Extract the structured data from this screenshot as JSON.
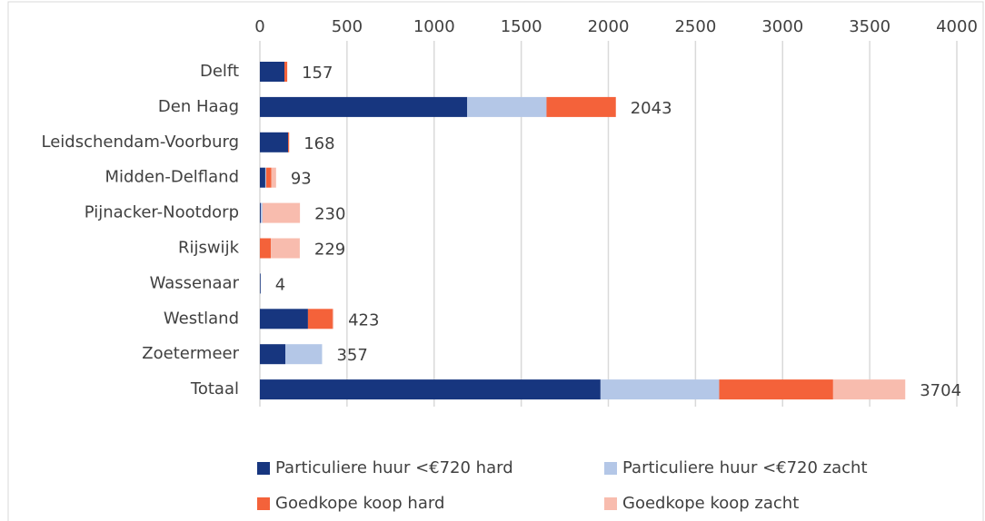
{
  "chart_data": {
    "type": "stacked_barh",
    "categories": [
      "Delft",
      "Den Haag",
      "Leidschendam-Voorburg",
      "Midden-Delfland",
      "Pijnacker-Nootdorp",
      "Rijswijk",
      "Wassenaar",
      "Westland",
      "Zoetermeer",
      "Totaal"
    ],
    "series": [
      {
        "name": "Particuliere huur <€720 hard",
        "color": "#17367f",
        "values": [
          141,
          1190,
          162,
          31,
          5,
          0,
          4,
          276,
          146,
          1955
        ]
      },
      {
        "name": "Particuliere huur <€720 zacht",
        "color": "#b4c7e7",
        "values": [
          0,
          455,
          0,
          5,
          10,
          0,
          0,
          0,
          211,
          681
        ]
      },
      {
        "name": "Goedkope koop hard",
        "color": "#f4623a",
        "values": [
          16,
          398,
          6,
          30,
          0,
          63,
          0,
          141,
          0,
          654
        ]
      },
      {
        "name": "Goedkope koop zacht",
        "color": "#f8bcae",
        "values": [
          0,
          0,
          0,
          27,
          215,
          166,
          0,
          6,
          0,
          414
        ]
      }
    ],
    "totals": [
      157,
      2043,
      168,
      93,
      230,
      229,
      4,
      423,
      357,
      3704
    ],
    "xlim": [
      0,
      4000
    ],
    "xticks": [
      0,
      500,
      1000,
      1500,
      2000,
      2500,
      3000,
      3500,
      4000
    ],
    "grid": true
  }
}
